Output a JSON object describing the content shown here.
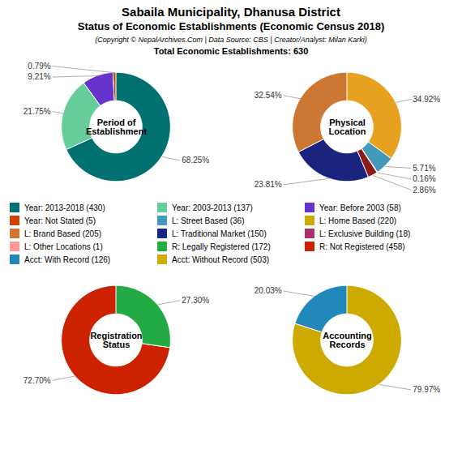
{
  "title": "Sabaila Municipality, Dhanusa District",
  "subtitle": "Status of Economic Establishments (Economic Census 2018)",
  "annotations": [
    "(Copyright © NepalArchives.Com | Data Source: CBS | Creator/Analyst: Milan Karki)",
    "Total Economic Establishments: 630"
  ],
  "series": [
    {
      "name": "Year: 2013-2018 (430)",
      "color": "#007070"
    },
    {
      "name": "Year: 2003-2013 (137)",
      "color": "#66CC99"
    },
    {
      "name": "Year: Before 2003 (58)",
      "color": "#6633CC"
    },
    {
      "name": "Year: Not Stated (5)",
      "color": "#CC4400"
    },
    {
      "name": "L: Street Based (36)",
      "color": "#4499BB"
    },
    {
      "name": "L: Home Based (220)",
      "color": "#CCAA00"
    },
    {
      "name": "L: Brand Based (205)",
      "color": "#CC7733"
    },
    {
      "name": "L: Traditional Market (150)",
      "color": "#1A237E"
    },
    {
      "name": "L: Exclusive Building (18)",
      "color": "#AA3366"
    },
    {
      "name": "L: Other Locations (1)",
      "color": "#FF9999"
    },
    {
      "name": "R: Legally Registered (172)",
      "color": "#22AA44"
    },
    {
      "name": "R: Not Registered (458)",
      "color": "#CC2200"
    },
    {
      "name": "Acct: With Record (126)",
      "color": "#2288BB"
    },
    {
      "name": "Acct: Without Record (503)",
      "color": "#CCAA00"
    }
  ],
  "chart_data": [
    {
      "type": "pie",
      "title": "Period of\nEstablishment",
      "values": [
        68.25,
        21.75,
        9.21,
        0.79
      ],
      "value_labels": [
        "68.25%",
        "21.75%",
        "9.21%",
        "0.79%"
      ],
      "colors": [
        "#007070",
        "#66CC99",
        "#6633CC",
        "#CC4400"
      ],
      "data_labels": true
    },
    {
      "type": "pie",
      "title": "Physical\nLocation",
      "values": [
        34.92,
        5.71,
        0.16,
        2.86,
        23.81,
        32.54
      ],
      "value_labels": [
        "34.92%",
        "5.71%",
        "0.16%",
        "2.86%",
        "23.81%",
        "32.54%"
      ],
      "colors": [
        "#E8A020",
        "#4499BB",
        "#CC6688",
        "#8B1A1A",
        "#1A237E",
        "#CC7733"
      ],
      "data_labels": true
    },
    {
      "type": "pie",
      "title": "Registration\nStatus",
      "values": [
        27.3,
        72.7
      ],
      "value_labels": [
        "27.30%",
        "72.70%"
      ],
      "colors": [
        "#22AA44",
        "#CC2200"
      ],
      "data_labels": true
    },
    {
      "type": "pie",
      "title": "Accounting\nRecords",
      "values": [
        79.97,
        20.03
      ],
      "value_labels": [
        "79.97%",
        "20.03%"
      ],
      "colors": [
        "#CCAA00",
        "#2288BB"
      ],
      "data_labels": true
    }
  ]
}
